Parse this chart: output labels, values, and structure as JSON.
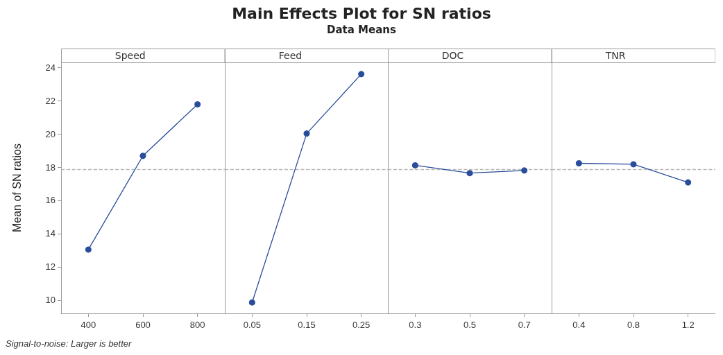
{
  "chart_data": [
    {
      "type": "line",
      "xlabel": "Speed",
      "ylabel": "Mean of SN ratios",
      "annotations": [
        "Signal-to-noise: Larger is better"
      ],
      "categories": [
        "400",
        "600",
        "800"
      ],
      "values": [
        13.04,
        18.68,
        21.78
      ],
      "color": "#2a4d9b",
      "ylim": [
        9.2,
        24.3
      ],
      "yticks": [
        10,
        12,
        14,
        16,
        18,
        20,
        22,
        24
      ],
      "grid": false,
      "marker": "circle",
      "line_style": "solid",
      "ref_lines": [
        {
          "axis": "y",
          "value": 17.87,
          "color": "#b8b8b8",
          "line_style": "dashed"
        }
      ]
    },
    {
      "type": "line",
      "title": "Main Effects Plot for SN ratios",
      "subtitle": "Data Means",
      "xlabel": "Feed",
      "categories": [
        "0.05",
        "0.15",
        "0.25"
      ],
      "values": [
        9.86,
        20.02,
        23.6
      ],
      "color": "#2a4d9b",
      "ylim": [
        9.2,
        24.3
      ],
      "yticks": [
        10,
        12,
        14,
        16,
        18,
        20,
        22,
        24
      ],
      "grid": false,
      "marker": "circle",
      "line_style": "solid",
      "tick_labels": "x",
      "ref_lines": [
        {
          "axis": "y",
          "value": 17.87,
          "color": "#b8b8b8",
          "line_style": "dashed"
        }
      ]
    },
    {
      "type": "line",
      "xlabel": "DOC",
      "categories": [
        "0.3",
        "0.5",
        "0.7"
      ],
      "values": [
        18.11,
        17.64,
        17.8
      ],
      "color": "#2a4d9b",
      "ylim": [
        9.2,
        24.3
      ],
      "yticks": [
        10,
        12,
        14,
        16,
        18,
        20,
        22,
        24
      ],
      "grid": false,
      "marker": "circle",
      "line_style": "solid",
      "tick_labels": "x",
      "ref_lines": [
        {
          "axis": "y",
          "value": 17.87,
          "color": "#b8b8b8",
          "line_style": "dashed"
        }
      ]
    },
    {
      "type": "line",
      "xlabel": "TNR",
      "categories": [
        "0.4",
        "0.8",
        "1.2"
      ],
      "values": [
        18.23,
        18.17,
        17.08
      ],
      "color": "#2a4d9b",
      "ylim": [
        9.2,
        24.3
      ],
      "yticks": [
        10,
        12,
        14,
        16,
        18,
        20,
        22,
        24
      ],
      "grid": false,
      "marker": "circle",
      "line_style": "solid",
      "tick_labels": "x",
      "ref_lines": [
        {
          "axis": "y",
          "value": 17.87,
          "color": "#b8b8b8",
          "line_style": "dashed"
        }
      ]
    }
  ]
}
